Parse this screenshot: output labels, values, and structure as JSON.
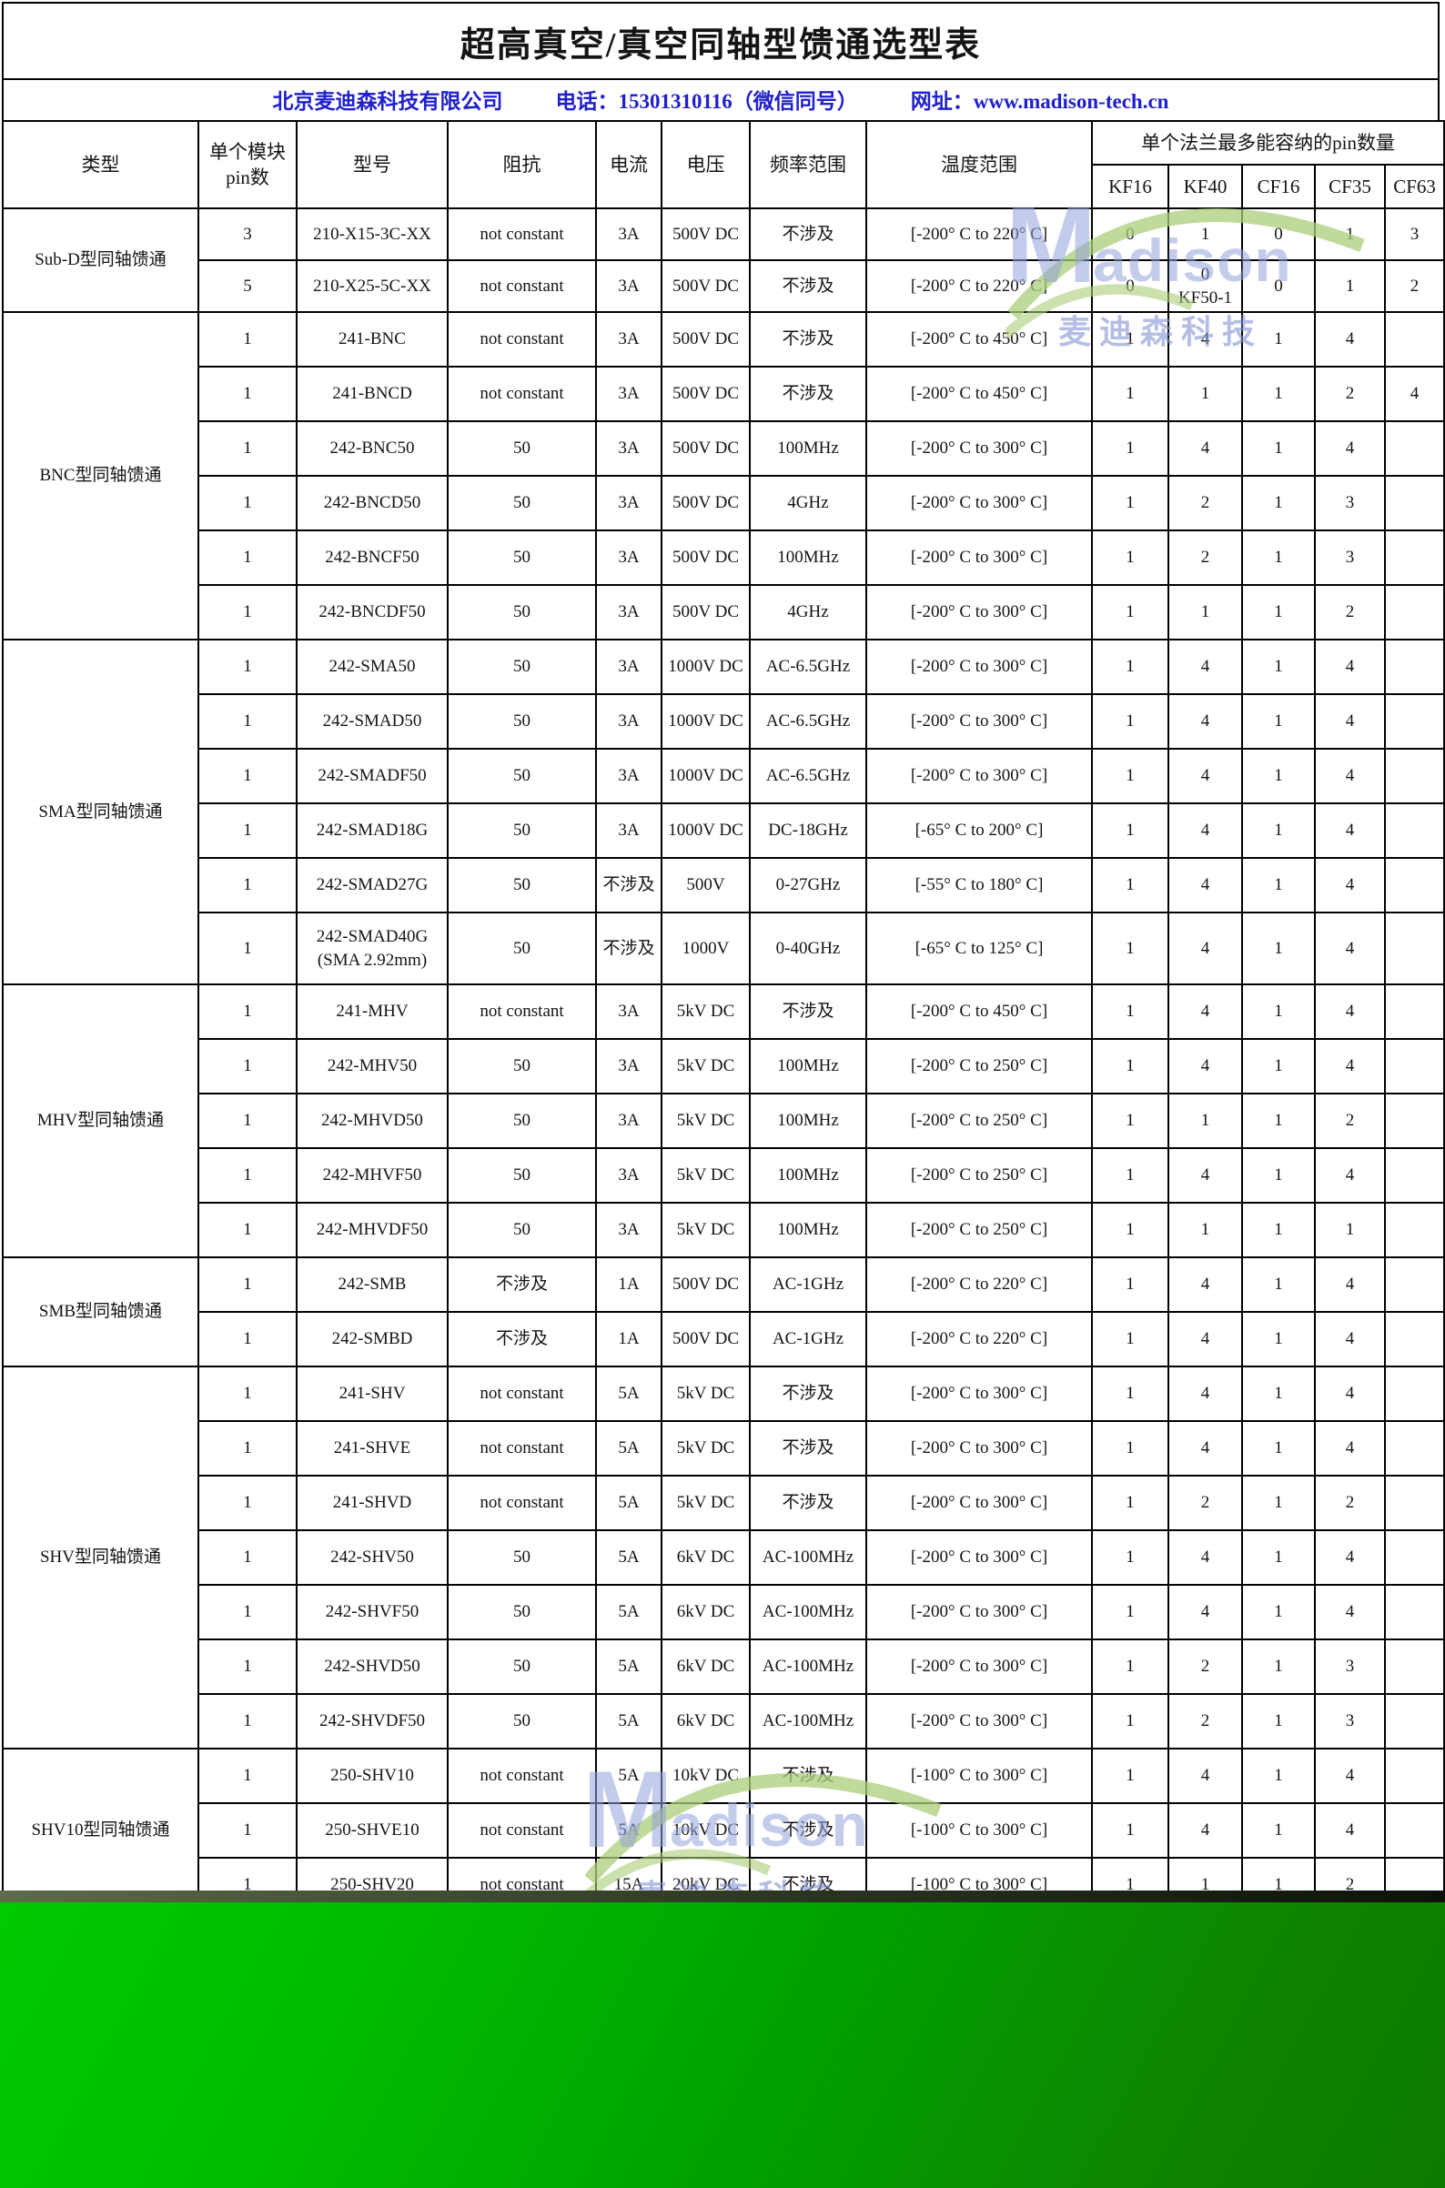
{
  "title": "超高真空/真空同轴型馈通选型表",
  "company_bar": {
    "company": "北京麦迪森科技有限公司",
    "phone": "电话：15301310116（微信同号）",
    "website": "网址：www.madison-tech.cn"
  },
  "table": {
    "headers": {
      "type": "类型",
      "pins_per_module": "单个模块pin数",
      "model": "型号",
      "impedance": "阻抗",
      "current": "电流",
      "voltage": "电压",
      "freq_range": "频率范围",
      "temp_range": "温度范围",
      "flange_group": "单个法兰最多能容纳的pin数量",
      "flanges": [
        "KF16",
        "KF40",
        "CF16",
        "CF35",
        "CF63"
      ]
    },
    "groups": [
      {
        "type": "Sub-D型同轴馈通",
        "rows": [
          {
            "pins": "3",
            "model": "210-X15-3C-XX",
            "impedance": "not constant",
            "current": "3A",
            "voltage": "500V DC",
            "freq": "不涉及",
            "temp": "[-200° C to 220° C]",
            "kf16": "0",
            "kf40": "1",
            "cf16": "0",
            "cf35": "1",
            "cf63": "3"
          },
          {
            "pins": "5",
            "model": "210-X25-5C-XX",
            "impedance": "not constant",
            "current": "3A",
            "voltage": "500V DC",
            "freq": "不涉及",
            "temp": "[-200° C to 220° C]",
            "kf16": "0",
            "kf40": "0",
            "kf40_note": "KF50-1",
            "cf16": "0",
            "cf35": "1",
            "cf63": "2"
          }
        ]
      },
      {
        "type": "BNC型同轴馈通",
        "rows": [
          {
            "pins": "1",
            "model": "241-BNC",
            "impedance": "not constant",
            "current": "3A",
            "voltage": "500V DC",
            "freq": "不涉及",
            "temp": "[-200° C to 450° C]",
            "kf16": "1",
            "kf40": "4",
            "cf16": "1",
            "cf35": "4",
            "cf63": ""
          },
          {
            "pins": "1",
            "model": "241-BNCD",
            "impedance": "not constant",
            "current": "3A",
            "voltage": "500V DC",
            "freq": "不涉及",
            "temp": "[-200° C to 450° C]",
            "kf16": "1",
            "kf40": "1",
            "cf16": "1",
            "cf35": "2",
            "cf63": "4"
          },
          {
            "pins": "1",
            "model": "242-BNC50",
            "impedance": "50",
            "current": "3A",
            "voltage": "500V DC",
            "freq": "100MHz",
            "temp": "[-200° C to 300° C]",
            "kf16": "1",
            "kf40": "4",
            "cf16": "1",
            "cf35": "4",
            "cf63": ""
          },
          {
            "pins": "1",
            "model": "242-BNCD50",
            "impedance": "50",
            "current": "3A",
            "voltage": "500V DC",
            "freq": "4GHz",
            "temp": "[-200° C to 300° C]",
            "kf16": "1",
            "kf40": "2",
            "cf16": "1",
            "cf35": "3",
            "cf63": ""
          },
          {
            "pins": "1",
            "model": "242-BNCF50",
            "impedance": "50",
            "current": "3A",
            "voltage": "500V DC",
            "freq": "100MHz",
            "temp": "[-200° C to 300° C]",
            "kf16": "1",
            "kf40": "2",
            "cf16": "1",
            "cf35": "3",
            "cf63": ""
          },
          {
            "pins": "1",
            "model": "242-BNCDF50",
            "impedance": "50",
            "current": "3A",
            "voltage": "500V DC",
            "freq": "4GHz",
            "temp": "[-200° C to 300° C]",
            "kf16": "1",
            "kf40": "1",
            "cf16": "1",
            "cf35": "2",
            "cf63": ""
          }
        ]
      },
      {
        "type": "SMA型同轴馈通",
        "rows": [
          {
            "pins": "1",
            "model": "242-SMA50",
            "impedance": "50",
            "current": "3A",
            "voltage": "1000V DC",
            "freq": "AC-6.5GHz",
            "temp": "[-200° C to 300° C]",
            "kf16": "1",
            "kf40": "4",
            "cf16": "1",
            "cf35": "4",
            "cf63": ""
          },
          {
            "pins": "1",
            "model": "242-SMAD50",
            "impedance": "50",
            "current": "3A",
            "voltage": "1000V DC",
            "freq": "AC-6.5GHz",
            "temp": "[-200° C to 300° C]",
            "kf16": "1",
            "kf40": "4",
            "cf16": "1",
            "cf35": "4",
            "cf63": ""
          },
          {
            "pins": "1",
            "model": "242-SMADF50",
            "impedance": "50",
            "current": "3A",
            "voltage": "1000V DC",
            "freq": "AC-6.5GHz",
            "temp": "[-200° C to 300° C]",
            "kf16": "1",
            "kf40": "4",
            "cf16": "1",
            "cf35": "4",
            "cf63": ""
          },
          {
            "pins": "1",
            "model": "242-SMAD18G",
            "impedance": "50",
            "current": "3A",
            "voltage": "1000V DC",
            "freq": "DC-18GHz",
            "temp": "[-65° C to 200° C]",
            "kf16": "1",
            "kf40": "4",
            "cf16": "1",
            "cf35": "4",
            "cf63": ""
          },
          {
            "pins": "1",
            "model": "242-SMAD27G",
            "impedance": "50",
            "current": "不涉及",
            "voltage": "500V",
            "freq": "0-27GHz",
            "temp": "[-55° C to 180° C]",
            "kf16": "1",
            "kf40": "4",
            "cf16": "1",
            "cf35": "4",
            "cf63": ""
          },
          {
            "pins": "1",
            "model": "242-SMAD40G",
            "model_note": "(SMA 2.92mm)",
            "impedance": "50",
            "current": "不涉及",
            "voltage": "1000V",
            "freq": "0-40GHz",
            "temp": "[-65° C to 125° C]",
            "kf16": "1",
            "kf40": "4",
            "cf16": "1",
            "cf35": "4",
            "cf63": ""
          }
        ]
      },
      {
        "type": "MHV型同轴馈通",
        "rows": [
          {
            "pins": "1",
            "model": "241-MHV",
            "impedance": "not constant",
            "current": "3A",
            "voltage": "5kV DC",
            "freq": "不涉及",
            "temp": "[-200° C to 450° C]",
            "kf16": "1",
            "kf40": "4",
            "cf16": "1",
            "cf35": "4",
            "cf63": ""
          },
          {
            "pins": "1",
            "model": "242-MHV50",
            "impedance": "50",
            "current": "3A",
            "voltage": "5kV DC",
            "freq": "100MHz",
            "temp": "[-200° C to 250° C]",
            "kf16": "1",
            "kf40": "4",
            "cf16": "1",
            "cf35": "4",
            "cf63": ""
          },
          {
            "pins": "1",
            "model": "242-MHVD50",
            "impedance": "50",
            "current": "3A",
            "voltage": "5kV DC",
            "freq": "100MHz",
            "temp": "[-200° C to 250° C]",
            "kf16": "1",
            "kf40": "1",
            "cf16": "1",
            "cf35": "2",
            "cf63": ""
          },
          {
            "pins": "1",
            "model": "242-MHVF50",
            "impedance": "50",
            "current": "3A",
            "voltage": "5kV DC",
            "freq": "100MHz",
            "temp": "[-200° C to 250° C]",
            "kf16": "1",
            "kf40": "4",
            "cf16": "1",
            "cf35": "4",
            "cf63": ""
          },
          {
            "pins": "1",
            "model": "242-MHVDF50",
            "impedance": "50",
            "current": "3A",
            "voltage": "5kV DC",
            "freq": "100MHz",
            "temp": "[-200° C to 250° C]",
            "kf16": "1",
            "kf40": "1",
            "cf16": "1",
            "cf35": "1",
            "cf63": ""
          }
        ]
      },
      {
        "type": "SMB型同轴馈通",
        "rows": [
          {
            "pins": "1",
            "model": "242-SMB",
            "impedance": "不涉及",
            "current": "1A",
            "voltage": "500V DC",
            "freq": "AC-1GHz",
            "temp": "[-200° C to 220° C]",
            "kf16": "1",
            "kf40": "4",
            "cf16": "1",
            "cf35": "4",
            "cf63": ""
          },
          {
            "pins": "1",
            "model": "242-SMBD",
            "impedance": "不涉及",
            "current": "1A",
            "voltage": "500V DC",
            "freq": "AC-1GHz",
            "temp": "[-200° C to 220° C]",
            "kf16": "1",
            "kf40": "4",
            "cf16": "1",
            "cf35": "4",
            "cf63": ""
          }
        ]
      },
      {
        "type": "SHV型同轴馈通",
        "rows": [
          {
            "pins": "1",
            "model": "241-SHV",
            "impedance": "not constant",
            "current": "5A",
            "voltage": "5kV DC",
            "freq": "不涉及",
            "temp": "[-200° C to 300° C]",
            "kf16": "1",
            "kf40": "4",
            "cf16": "1",
            "cf35": "4",
            "cf63": ""
          },
          {
            "pins": "1",
            "model": "241-SHVE",
            "impedance": "not constant",
            "current": "5A",
            "voltage": "5kV DC",
            "freq": "不涉及",
            "temp": "[-200° C to 300° C]",
            "kf16": "1",
            "kf40": "4",
            "cf16": "1",
            "cf35": "4",
            "cf63": ""
          },
          {
            "pins": "1",
            "model": "241-SHVD",
            "impedance": "not constant",
            "current": "5A",
            "voltage": "5kV DC",
            "freq": "不涉及",
            "temp": "[-200° C to 300° C]",
            "kf16": "1",
            "kf40": "2",
            "cf16": "1",
            "cf35": "2",
            "cf63": ""
          },
          {
            "pins": "1",
            "model": "242-SHV50",
            "impedance": "50",
            "current": "5A",
            "voltage": "6kV DC",
            "freq": "AC-100MHz",
            "temp": "[-200° C to 300° C]",
            "kf16": "1",
            "kf40": "4",
            "cf16": "1",
            "cf35": "4",
            "cf63": ""
          },
          {
            "pins": "1",
            "model": "242-SHVF50",
            "impedance": "50",
            "current": "5A",
            "voltage": "6kV DC",
            "freq": "AC-100MHz",
            "temp": "[-200° C to 300° C]",
            "kf16": "1",
            "kf40": "4",
            "cf16": "1",
            "cf35": "4",
            "cf63": ""
          },
          {
            "pins": "1",
            "model": "242-SHVD50",
            "impedance": "50",
            "current": "5A",
            "voltage": "6kV DC",
            "freq": "AC-100MHz",
            "temp": "[-200° C to 300° C]",
            "kf16": "1",
            "kf40": "2",
            "cf16": "1",
            "cf35": "3",
            "cf63": ""
          },
          {
            "pins": "1",
            "model": "242-SHVDF50",
            "impedance": "50",
            "current": "5A",
            "voltage": "6kV DC",
            "freq": "AC-100MHz",
            "temp": "[-200° C to 300° C]",
            "kf16": "1",
            "kf40": "2",
            "cf16": "1",
            "cf35": "3",
            "cf63": ""
          }
        ]
      },
      {
        "type": "SHV10型同轴馈通",
        "rows": [
          {
            "pins": "1",
            "model": "250-SHV10",
            "impedance": "not constant",
            "current": "5A",
            "voltage": "10kV DC",
            "freq": "不涉及",
            "temp": "[-100° C to 300° C]",
            "kf16": "1",
            "kf40": "4",
            "cf16": "1",
            "cf35": "4",
            "cf63": ""
          },
          {
            "pins": "1",
            "model": "250-SHVE10",
            "impedance": "not constant",
            "current": "5A",
            "voltage": "10kV DC",
            "freq": "不涉及",
            "temp": "[-100° C to 300° C]",
            "kf16": "1",
            "kf40": "4",
            "cf16": "1",
            "cf35": "4",
            "cf63": ""
          },
          {
            "pins": "1",
            "model": "250-SHV20",
            "impedance": "not constant",
            "current": "15A",
            "voltage": "20kV DC",
            "freq": "不涉及",
            "temp": "[-100° C to 300° C]",
            "kf16": "1",
            "kf40": "1",
            "cf16": "1",
            "cf35": "2",
            "cf63": ""
          }
        ]
      }
    ]
  },
  "watermark": {
    "initial": "M",
    "wordmark_rest": "adison",
    "subtext": "麦迪森科技"
  },
  "footer": {
    "dots": "···········"
  }
}
